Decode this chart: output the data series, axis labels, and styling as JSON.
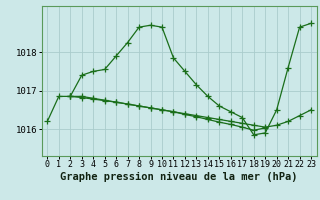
{
  "title": "Graphe pression niveau de la mer (hPa)",
  "background_color": "#cce8e8",
  "line_color": "#1a6e1a",
  "grid_color": "#aacccc",
  "xlim": [
    -0.5,
    23.5
  ],
  "ylim": [
    1015.3,
    1019.2
  ],
  "yticks": [
    1016,
    1017,
    1018
  ],
  "xticks": [
    0,
    1,
    2,
    3,
    4,
    5,
    6,
    7,
    8,
    9,
    10,
    11,
    12,
    13,
    14,
    15,
    16,
    17,
    18,
    19,
    20,
    21,
    22,
    23
  ],
  "series1": {
    "x": [
      0,
      1,
      2,
      3,
      4,
      5,
      6,
      7,
      8,
      9,
      10,
      11,
      12,
      13,
      14,
      15,
      16,
      17,
      18,
      19,
      20,
      21,
      22,
      23
    ],
    "y": [
      1016.2,
      1016.85,
      1016.85,
      1017.4,
      1017.5,
      1017.55,
      1017.9,
      1018.25,
      1018.65,
      1018.7,
      1018.65,
      1017.85,
      1017.5,
      1017.15,
      1016.85,
      1016.6,
      1016.45,
      1016.3,
      1015.85,
      1015.9,
      1016.5,
      1017.6,
      1018.65,
      1018.75
    ]
  },
  "series2": {
    "x": [
      2,
      3,
      4,
      5,
      6,
      7,
      8,
      9,
      10,
      11,
      12,
      13,
      14,
      15,
      16,
      17,
      18,
      19,
      20,
      21,
      22,
      23
    ],
    "y": [
      1016.85,
      1016.85,
      1016.8,
      1016.75,
      1016.7,
      1016.65,
      1016.6,
      1016.55,
      1016.5,
      1016.45,
      1016.4,
      1016.35,
      1016.3,
      1016.25,
      1016.2,
      1016.15,
      1016.1,
      1016.05,
      1016.1,
      1016.2,
      1016.35,
      1016.5
    ]
  },
  "series3": {
    "x": [
      2,
      3,
      4,
      5,
      6,
      7,
      8,
      9,
      10,
      11,
      12,
      13,
      14,
      15,
      16,
      17,
      18,
      19
    ],
    "y": [
      1016.85,
      1016.82,
      1016.78,
      1016.74,
      1016.7,
      1016.65,
      1016.6,
      1016.55,
      1016.5,
      1016.45,
      1016.38,
      1016.32,
      1016.25,
      1016.18,
      1016.12,
      1016.05,
      1015.97,
      1016.03
    ]
  },
  "title_fontsize": 7.5,
  "tick_fontsize": 6
}
